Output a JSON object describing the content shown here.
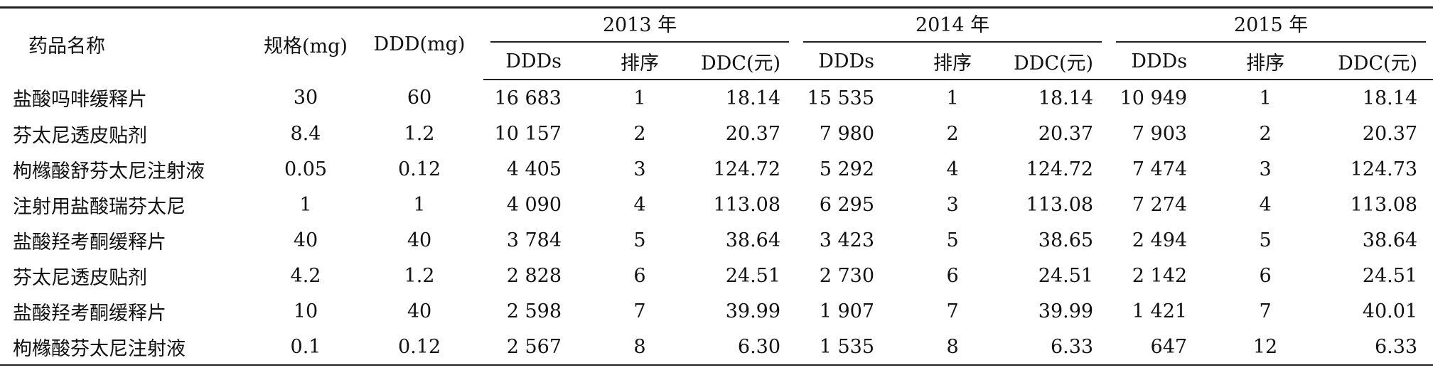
{
  "table": {
    "header": {
      "drug": "药品名称",
      "spec": "规格(mg)",
      "ddd": "DDD(mg)",
      "years": [
        {
          "label": "2013 年",
          "cols": [
            "DDDs",
            "排序",
            "DDC(元)"
          ]
        },
        {
          "label": "2014 年",
          "cols": [
            "DDDs",
            "排序",
            "DDC(元)"
          ]
        },
        {
          "label": "2015 年",
          "cols": [
            "DDDs",
            "排序",
            "DDC(元)"
          ]
        }
      ]
    },
    "rows": [
      [
        "盐酸吗啡缓释片",
        "30",
        "60",
        "16 683",
        "1",
        "18.14",
        "15 535",
        "1",
        "18.14",
        "10 949",
        "1",
        "18.14"
      ],
      [
        "芬太尼透皮贴剂",
        "8.4",
        "1.2",
        "10 157",
        "2",
        "20.37",
        "7 980",
        "2",
        "20.37",
        "7 903",
        "2",
        "20.37"
      ],
      [
        "枸橼酸舒芬太尼注射液",
        "0.05",
        "0.12",
        "4 405",
        "3",
        "124.72",
        "5 292",
        "4",
        "124.72",
        "7 474",
        "3",
        "124.73"
      ],
      [
        "注射用盐酸瑞芬太尼",
        "1",
        "1",
        "4 090",
        "4",
        "113.08",
        "6 295",
        "3",
        "113.08",
        "7 274",
        "4",
        "113.08"
      ],
      [
        "盐酸羟考酮缓释片",
        "40",
        "40",
        "3 784",
        "5",
        "38.64",
        "3 423",
        "5",
        "38.65",
        "2 494",
        "5",
        "38.64"
      ],
      [
        "芬太尼透皮贴剂",
        "4.2",
        "1.2",
        "2 828",
        "6",
        "24.51",
        "2 730",
        "6",
        "24.51",
        "2 142",
        "6",
        "24.51"
      ],
      [
        "盐酸羟考酮缓释片",
        "10",
        "40",
        "2 598",
        "7",
        "39.99",
        "1 907",
        "7",
        "39.99",
        "1 421",
        "7",
        "40.01"
      ],
      [
        "枸橼酸芬太尼注射液",
        "0.1",
        "0.12",
        "2 567",
        "8",
        "6.30",
        "1 535",
        "8",
        "6.33",
        "647",
        "12",
        "6.33"
      ]
    ]
  }
}
